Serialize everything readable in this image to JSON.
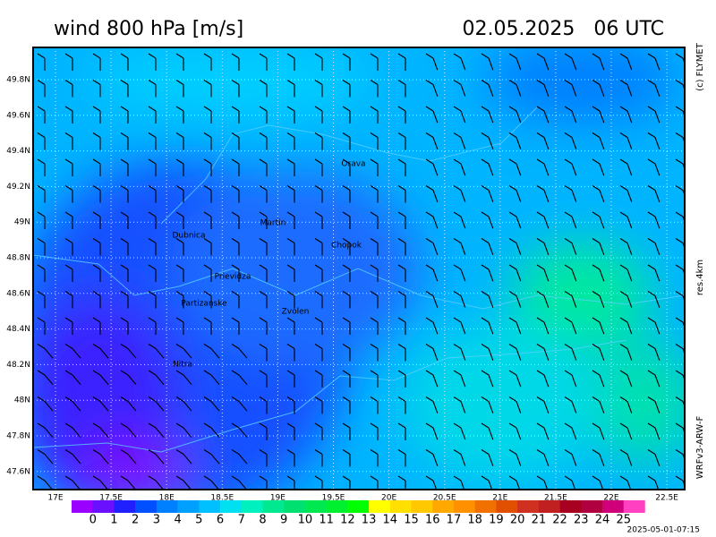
{
  "header": {
    "title": "wind 800 hPa [m/s]",
    "datetime": "02.05.2025   06 UTC"
  },
  "side": {
    "credit": "(c) FLYMET",
    "resolution": "res.4km",
    "model": "WRFv3-ARW-F"
  },
  "axes": {
    "lon": [
      "17E",
      "17.5E",
      "18E",
      "18.5E",
      "19E",
      "19.5E",
      "20E",
      "20.5E",
      "21E",
      "21.5E",
      "22E",
      "22.5E"
    ],
    "lat": [
      "49.8N",
      "49.6N",
      "49.4N",
      "49.2N",
      "49N",
      "48.8N",
      "48.6N",
      "48.4N",
      "48.2N",
      "48N",
      "47.8N",
      "47.6N"
    ]
  },
  "places": [
    {
      "name": "Orava"
    },
    {
      "name": "Martin"
    },
    {
      "name": "Dubnica"
    },
    {
      "name": "Chopok"
    },
    {
      "name": "Prievidza"
    },
    {
      "name": "Partizanske"
    },
    {
      "name": "Zvolen"
    },
    {
      "name": "Nitra"
    }
  ],
  "colorbar": {
    "colors": [
      "#9a00ff",
      "#6a10ff",
      "#2020ff",
      "#0050ff",
      "#0080ff",
      "#00a0ff",
      "#00c0ff",
      "#00e0f0",
      "#00f0c0",
      "#00e890",
      "#00e070",
      "#00e850",
      "#00f030",
      "#00ff00",
      "#ffff00",
      "#ffe000",
      "#ffc800",
      "#ffa800",
      "#ff9000",
      "#f07000",
      "#e05000",
      "#d03020",
      "#c02020",
      "#a80020",
      "#b00040",
      "#d0007a",
      "#ff40c0"
    ],
    "labels": [
      "0",
      "1",
      "2",
      "3",
      "4",
      "5",
      "6",
      "7",
      "8",
      "9",
      "10",
      "11",
      "12",
      "13",
      "14",
      "15",
      "16",
      "17",
      "18",
      "19",
      "20",
      "21",
      "22",
      "23",
      "24",
      "25"
    ]
  },
  "footer": {
    "timestamp": "2025-05-01-07:15"
  }
}
